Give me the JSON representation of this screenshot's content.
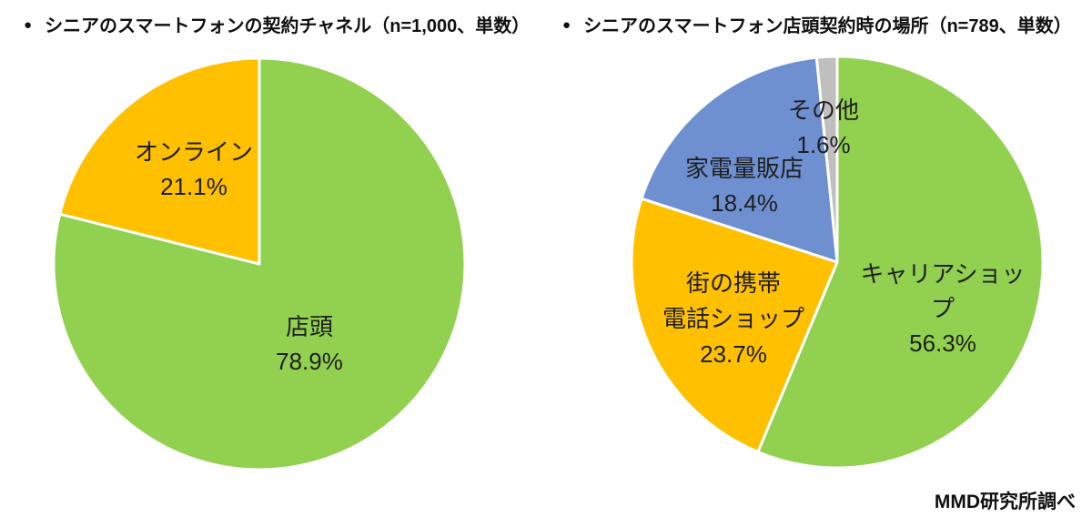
{
  "titles": {
    "bullet": "●"
  },
  "footer": {
    "credit": "MMD研究所調べ"
  },
  "chart_data": [
    {
      "type": "pie",
      "title": "シニアのスマートフォンの契約チャネル（n=1,000、単数）",
      "sample_label": "n=1,000、単数",
      "start_angle_deg": 0,
      "clockwise": true,
      "border_color": "#ffffff",
      "slices": [
        {
          "id": "instore",
          "label": "店頭",
          "value": 78.9,
          "color": "#92D050",
          "display": [
            "店頭",
            "78.9%"
          ]
        },
        {
          "id": "online",
          "label": "オンライン",
          "value": 21.1,
          "color": "#FFC000",
          "display": [
            "オンライン",
            "21.1%"
          ]
        }
      ]
    },
    {
      "type": "pie",
      "title": "シニアのスマートフォン店頭契約時の場所（n=789、単数）",
      "sample_label": "n=789、単数",
      "start_angle_deg": 0,
      "clockwise": true,
      "border_color": "#ffffff",
      "slices": [
        {
          "id": "carrier-shop",
          "label": "キャリアショップ",
          "value": 56.3,
          "color": "#92D050",
          "display": [
            "キャリアショップ",
            "56.3%"
          ]
        },
        {
          "id": "town-mobile-shop",
          "label": "街の携帯電話ショップ",
          "value": 23.7,
          "color": "#FFC000",
          "display": [
            "街の携帯",
            "電話ショップ",
            "23.7%"
          ]
        },
        {
          "id": "electronics-retailer",
          "label": "家電量販店",
          "value": 18.4,
          "color": "#6E90D1",
          "display": [
            "家電量販店",
            "18.4%"
          ]
        },
        {
          "id": "other",
          "label": "その他",
          "value": 1.6,
          "color": "#BFBFBF",
          "display": [
            "その他",
            "1.6%"
          ]
        }
      ]
    }
  ]
}
